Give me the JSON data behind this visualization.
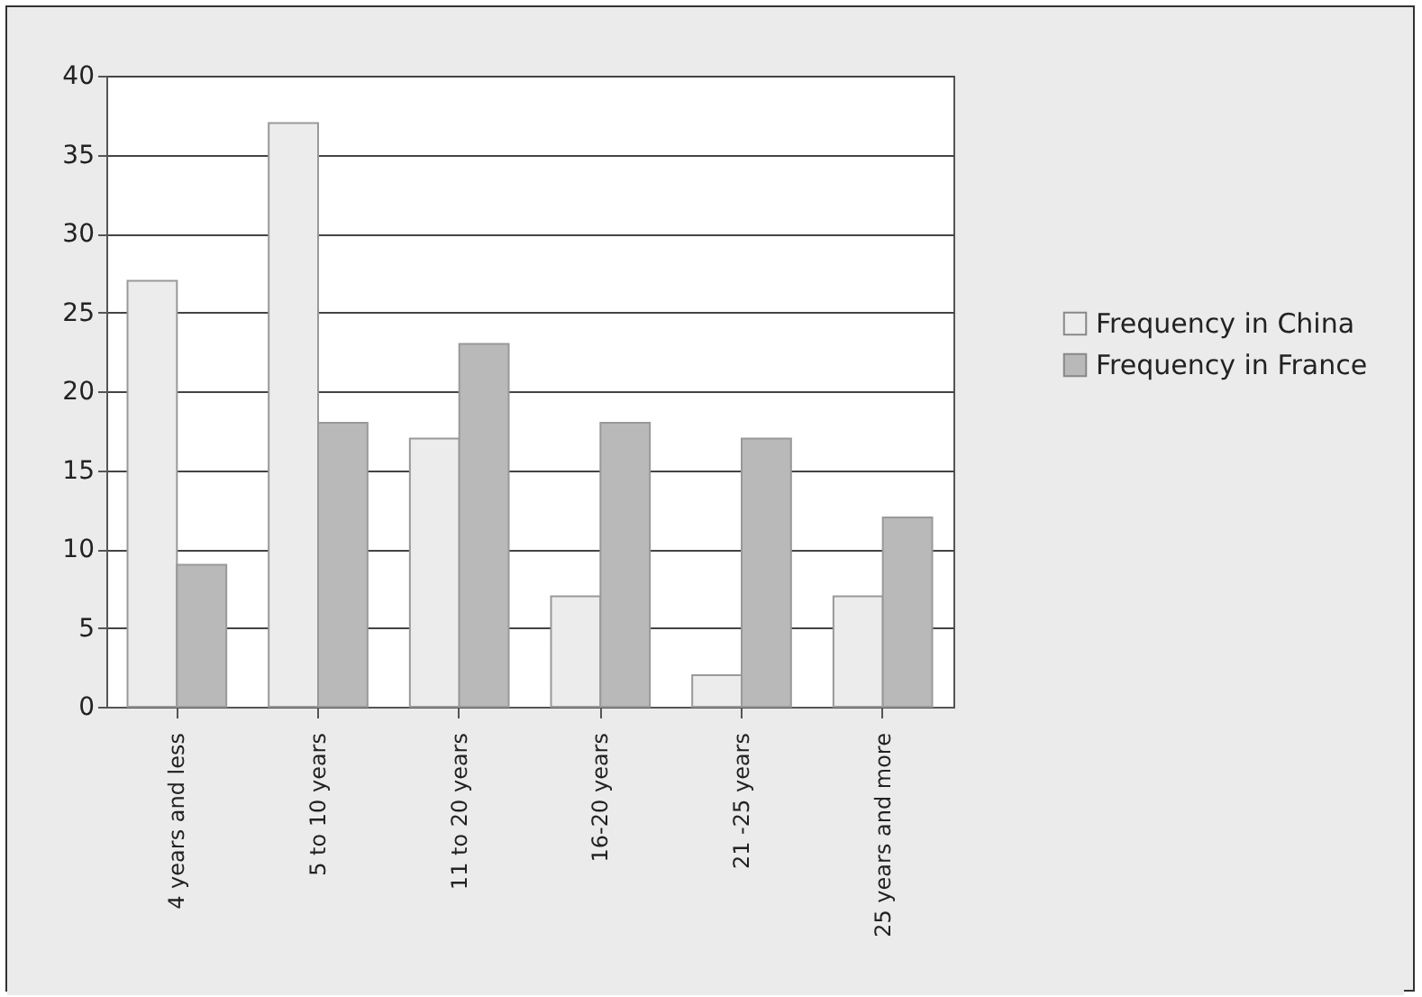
{
  "chart_data": {
    "type": "bar",
    "categories": [
      "4 years and less",
      "5 to 10 years",
      "11 to 20 years",
      "16-20 years",
      "21 -25 years",
      "25 years and more"
    ],
    "series": [
      {
        "name": "Frequency in China",
        "color": "#ececec",
        "values": [
          27,
          37,
          17,
          7,
          2,
          7
        ]
      },
      {
        "name": "Frequency in France",
        "color": "#b9b9b9",
        "values": [
          9,
          18,
          23,
          18,
          17,
          12
        ]
      }
    ],
    "ylim": [
      0,
      40
    ],
    "yticks": [
      0,
      5,
      10,
      15,
      20,
      25,
      30,
      35,
      40
    ],
    "grid": "y",
    "legend": "right"
  }
}
